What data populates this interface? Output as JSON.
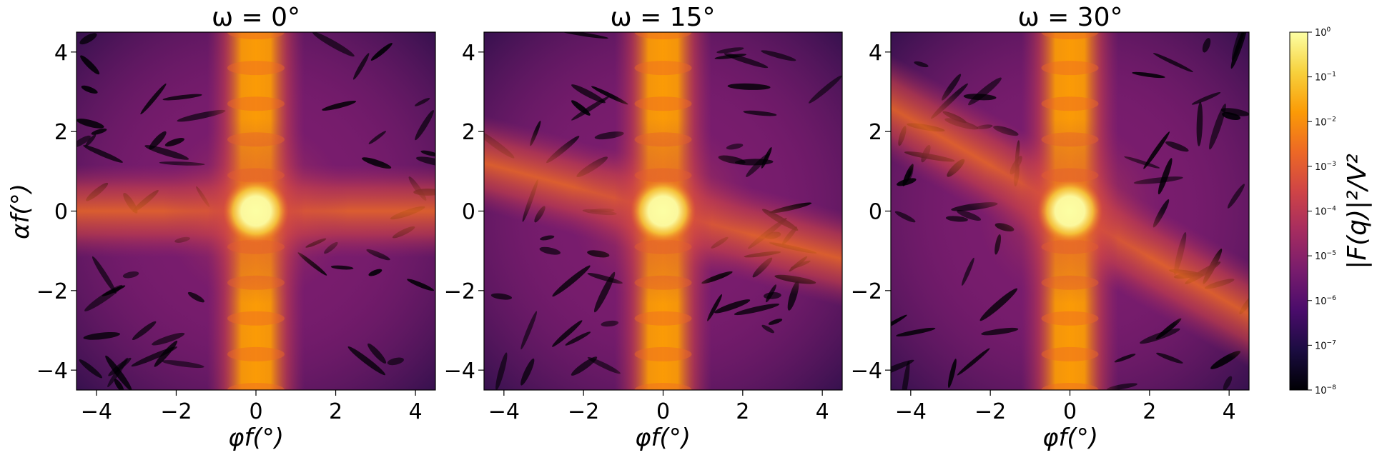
{
  "chart_data": [
    {
      "type": "heatmap",
      "title": "ω = 0°",
      "xlabel": "φf(°)",
      "ylabel": "αf(°)",
      "xlim": [
        -4.5,
        4.5
      ],
      "ylim": [
        -4.5,
        4.5
      ],
      "x_ticks": [
        -4,
        -2,
        0,
        2,
        4
      ],
      "y_ticks": [
        -4,
        -2,
        0,
        2,
        4
      ],
      "x_tick_labels": [
        "−4",
        "−2",
        "0",
        "2",
        "4"
      ],
      "y_tick_labels": [
        "−4",
        "−2",
        "0",
        "2",
        "4"
      ],
      "tilt_deg": 0,
      "colormap": "inferno",
      "log_scale": true
    },
    {
      "type": "heatmap",
      "title": "ω = 15°",
      "xlabel": "φf(°)",
      "ylabel": "",
      "xlim": [
        -4.5,
        4.5
      ],
      "ylim": [
        -4.5,
        4.5
      ],
      "x_ticks": [
        -4,
        -2,
        0,
        2,
        4
      ],
      "y_ticks": [
        -4,
        -2,
        0,
        2,
        4
      ],
      "x_tick_labels": [
        "−4",
        "−2",
        "0",
        "2",
        "4"
      ],
      "y_tick_labels": [
        "−4",
        "−2",
        "0",
        "2",
        "4"
      ],
      "tilt_deg": 15,
      "colormap": "inferno",
      "log_scale": true
    },
    {
      "type": "heatmap",
      "title": "ω = 30°",
      "xlabel": "φf(°)",
      "ylabel": "",
      "xlim": [
        -4.5,
        4.5
      ],
      "ylim": [
        -4.5,
        4.5
      ],
      "x_ticks": [
        -4,
        -2,
        0,
        2,
        4
      ],
      "y_ticks": [
        -4,
        -2,
        0,
        2,
        4
      ],
      "x_tick_labels": [
        "−4",
        "−2",
        "0",
        "2",
        "4"
      ],
      "y_tick_labels": [
        "−4",
        "−2",
        "0",
        "2",
        "4"
      ],
      "tilt_deg": 30,
      "colormap": "inferno",
      "log_scale": true
    }
  ],
  "colorbar": {
    "label": "|F(q)|²/V²",
    "range": [
      1e-08,
      1
    ],
    "scale": "log",
    "tick_exponents": [
      0,
      -1,
      -2,
      -3,
      -4,
      -5,
      -6,
      -7,
      -8
    ]
  },
  "colors": {
    "inferno_stops": [
      "#000004",
      "#1b0c41",
      "#4a0c6b",
      "#781c6d",
      "#a52c60",
      "#cf4446",
      "#ed6925",
      "#fb9b06",
      "#f7d13d",
      "#fcffa4"
    ]
  }
}
